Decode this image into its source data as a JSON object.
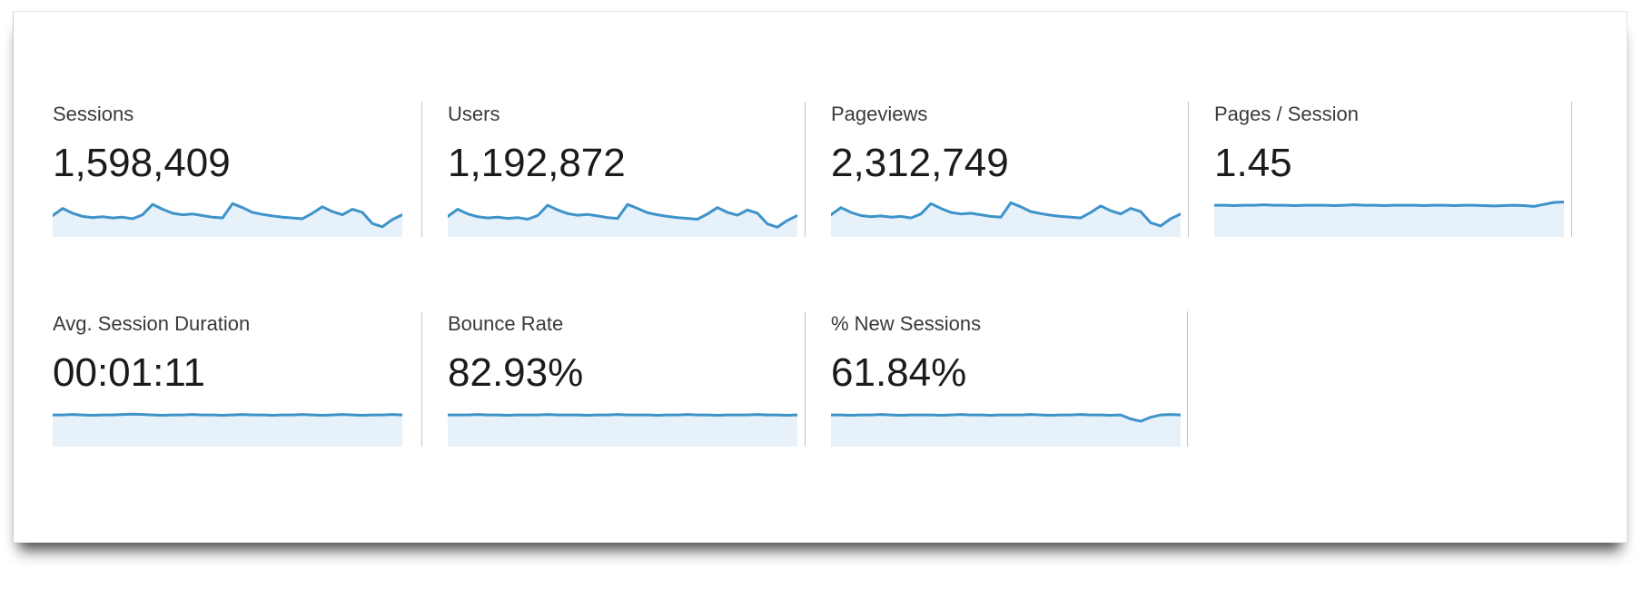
{
  "colors": {
    "spark_line": "#3e93c9",
    "spark_fill": "#e6f1fa",
    "divider": "#c3c3c3",
    "value_text": "#1b1b1b",
    "label_text": "#3a3a3a"
  },
  "metrics": {
    "rows": [
      {
        "cards": [
          {
            "label": "Sessions",
            "value": "1,598,409",
            "spark": [
              50,
              68,
              56,
              48,
              45,
              47,
              44,
              46,
              42,
              52,
              78,
              66,
              56,
              52,
              54,
              50,
              46,
              44,
              80,
              70,
              58,
              53,
              49,
              46,
              44,
              42,
              56,
              72,
              60,
              52,
              66,
              58,
              30,
              22,
              40,
              52
            ]
          },
          {
            "label": "Users",
            "value": "1,192,872",
            "spark": [
              48,
              66,
              54,
              47,
              44,
              46,
              43,
              45,
              41,
              50,
              76,
              64,
              55,
              51,
              53,
              49,
              45,
              43,
              78,
              68,
              57,
              52,
              48,
              45,
              43,
              41,
              54,
              70,
              58,
              51,
              64,
              56,
              29,
              21,
              38,
              50
            ]
          },
          {
            "label": "Pageviews",
            "value": "2,312,749",
            "spark": [
              52,
              70,
              58,
              50,
              47,
              49,
              46,
              48,
              44,
              54,
              80,
              68,
              58,
              54,
              56,
              52,
              48,
              46,
              82,
              72,
              60,
              55,
              51,
              48,
              46,
              44,
              58,
              74,
              62,
              54,
              68,
              60,
              32,
              24,
              42,
              54
            ]
          },
          {
            "label": "Pages / Session",
            "value": "1.45",
            "spark": [
              76,
              76,
              75,
              76,
              76,
              77,
              76,
              76,
              75,
              76,
              76,
              76,
              75,
              76,
              77,
              76,
              76,
              75,
              76,
              76,
              76,
              75,
              76,
              76,
              75,
              76,
              76,
              75,
              74,
              75,
              76,
              75,
              73,
              78,
              83,
              84
            ]
          }
        ]
      },
      {
        "cards": [
          {
            "label": "Avg. Session Duration",
            "value": "00:01:11",
            "spark": [
              76,
              76,
              77,
              76,
              75,
              76,
              76,
              77,
              78,
              77,
              76,
              75,
              76,
              76,
              77,
              76,
              76,
              75,
              76,
              77,
              76,
              76,
              75,
              76,
              76,
              77,
              76,
              75,
              76,
              77,
              76,
              75,
              76,
              76,
              77,
              76
            ]
          },
          {
            "label": "Bounce Rate",
            "value": "82.93%",
            "spark": [
              76,
              76,
              76,
              77,
              76,
              76,
              75,
              76,
              76,
              76,
              77,
              76,
              76,
              76,
              75,
              76,
              76,
              77,
              76,
              76,
              76,
              75,
              76,
              76,
              77,
              76,
              76,
              75,
              76,
              76,
              76,
              77,
              76,
              76,
              75,
              76
            ]
          },
          {
            "label": "% New Sessions",
            "value": "61.84%",
            "spark": [
              76,
              76,
              75,
              76,
              76,
              77,
              76,
              75,
              76,
              76,
              76,
              75,
              76,
              77,
              76,
              76,
              75,
              76,
              76,
              76,
              77,
              76,
              75,
              76,
              76,
              77,
              76,
              76,
              75,
              76,
              66,
              60,
              70,
              76,
              77,
              76
            ]
          }
        ]
      }
    ]
  }
}
